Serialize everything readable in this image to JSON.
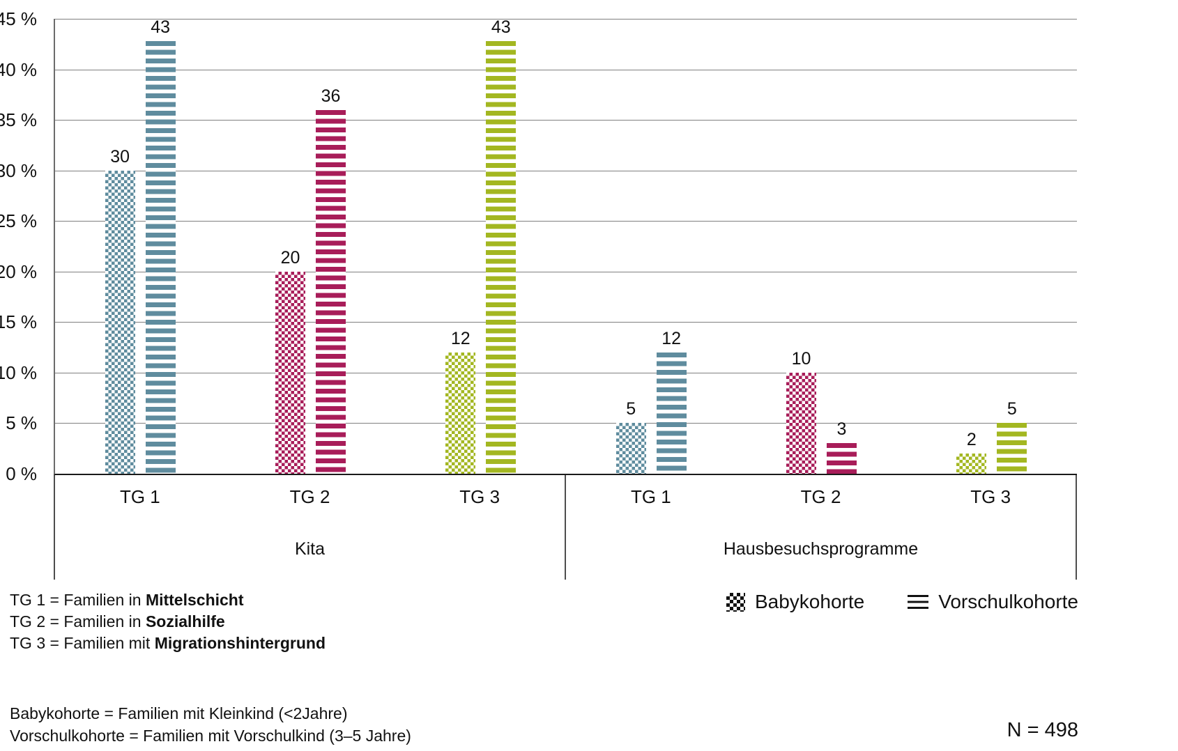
{
  "chart_data": {
    "type": "bar",
    "title": "",
    "xlabel": "",
    "ylabel": "",
    "ylim": [
      0,
      45
    ],
    "yticks": [
      45,
      40,
      35,
      30,
      25,
      20,
      15,
      10,
      5,
      0
    ],
    "ytick_suffix": " %",
    "grid": "horizontal",
    "groups": [
      {
        "label": "Kita",
        "categories": [
          "TG 1",
          "TG 2",
          "TG 3"
        ]
      },
      {
        "label": "Hausbesuchsprogramme",
        "categories": [
          "TG 1",
          "TG 2",
          "TG 3"
        ]
      }
    ],
    "series": [
      {
        "name": "Babykohorte",
        "pattern": "checker",
        "values_by_group": [
          [
            30,
            20,
            12
          ],
          [
            5,
            10,
            2
          ]
        ]
      },
      {
        "name": "Vorschulkohorte",
        "pattern": "hstripes",
        "values_by_group": [
          [
            43,
            36,
            43
          ],
          [
            12,
            3,
            5
          ]
        ]
      }
    ],
    "category_colors": [
      "#5f8c9e",
      "#a81d59",
      "#a3b721"
    ],
    "legend_position": "bottom-right",
    "legend": [
      {
        "label": "Babykohorte",
        "pattern": "checker"
      },
      {
        "label": "Vorschulkohorte",
        "pattern": "hstripes"
      }
    ]
  },
  "footnotes": {
    "tg": [
      {
        "prefix": "TG 1 = Familien in ",
        "bold": "Mittelschicht"
      },
      {
        "prefix": "TG 2 = Familien in ",
        "bold": "Sozialhilfe"
      },
      {
        "prefix": "TG 3 = Familien mit ",
        "bold": "Migrationshintergrund"
      }
    ],
    "cohorts": [
      "Babykohorte = Familien mit Kleinkind (<2Jahre)",
      "Vorschulkohorte = Familien mit Vorschulkind (3–5 Jahre)"
    ]
  },
  "sample_size": "N = 498"
}
